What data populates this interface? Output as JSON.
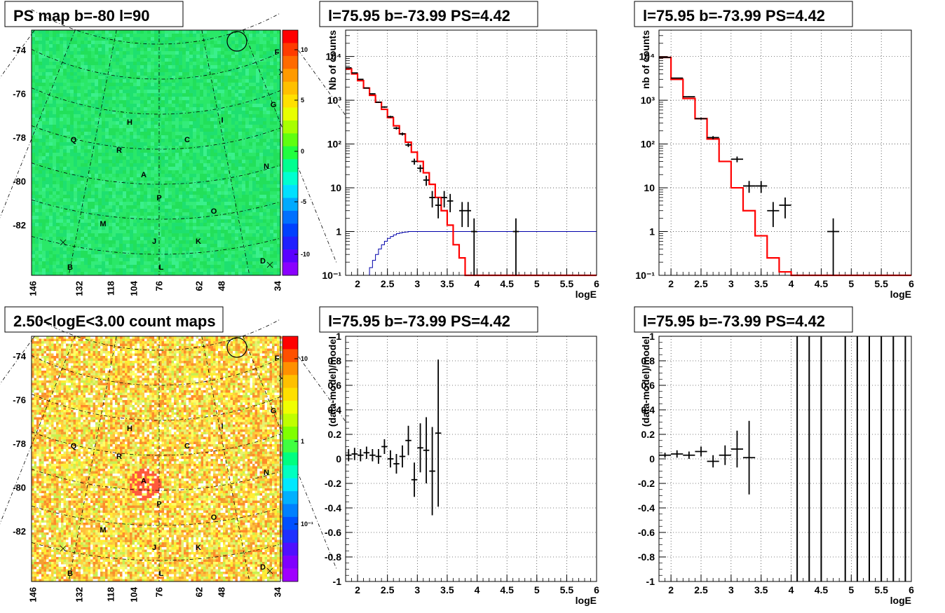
{
  "map_top": {
    "title": "PS map b=-80 l=90",
    "yticks": [
      "-74",
      "-76",
      "-78",
      "-80",
      "-82"
    ],
    "xticks": [
      "146",
      "132",
      "118",
      "104",
      "76",
      "62",
      "48",
      "34"
    ],
    "zticks": [
      "10",
      "5",
      "0",
      "-5",
      "-10"
    ],
    "labels": [
      "F",
      "G",
      "I",
      "H",
      "Q",
      "C",
      "R",
      "N",
      "A",
      "P",
      "O",
      "M",
      "J",
      "K",
      "D",
      "B",
      "L"
    ]
  },
  "map_bottom": {
    "title": "2.50<logE<3.00 count maps",
    "yticks": [
      "-74",
      "-76",
      "-78",
      "-80",
      "-82"
    ],
    "xticks": [
      "146",
      "132",
      "118",
      "104",
      "76",
      "62",
      "48",
      "34"
    ],
    "zticks": [
      "10",
      "1",
      "10⁻¹"
    ],
    "labels": [
      "F",
      "G",
      "I",
      "H",
      "Q",
      "C",
      "R",
      "N",
      "A",
      "P",
      "O",
      "M",
      "J",
      "K",
      "D",
      "B",
      "L"
    ]
  },
  "colors": {
    "data": "#000000",
    "model": "#ff0000",
    "efficiency": "#0000aa",
    "map_green": "#22e060"
  },
  "chart_data": [
    {
      "type": "line",
      "title": "l=75.95 b=-73.99 PS=4.42",
      "xlabel": "logE",
      "ylabel": "Nb of counts",
      "xlim": [
        1.8,
        6
      ],
      "ylim": [
        0.1,
        40000
      ],
      "log_y": true,
      "grid": true,
      "xticks": [
        "2",
        "2.5",
        "3",
        "3.5",
        "4",
        "4.5",
        "5",
        "5.5",
        "6"
      ],
      "yticks": [
        "10⁻¹",
        "1",
        "10",
        "10²",
        "10³",
        "10⁴"
      ],
      "data_points": [
        [
          1.85,
          5500
        ],
        [
          1.95,
          4200
        ],
        [
          2.05,
          3000
        ],
        [
          2.15,
          1900
        ],
        [
          2.25,
          1400
        ],
        [
          2.35,
          900
        ],
        [
          2.45,
          700
        ],
        [
          2.55,
          420
        ],
        [
          2.65,
          230
        ],
        [
          2.75,
          170
        ],
        [
          2.85,
          95
        ],
        [
          2.95,
          40
        ],
        [
          3.05,
          28
        ],
        [
          3.15,
          15
        ],
        [
          3.25,
          6
        ],
        [
          3.35,
          4
        ],
        [
          3.45,
          6
        ],
        [
          3.55,
          5
        ],
        [
          3.75,
          3
        ],
        [
          3.85,
          3
        ],
        [
          3.95,
          1
        ],
        [
          4.65,
          1
        ]
      ],
      "model_steps": [
        [
          1.8,
          5200
        ],
        [
          1.9,
          4000
        ],
        [
          2.0,
          2800
        ],
        [
          2.1,
          1900
        ],
        [
          2.2,
          1300
        ],
        [
          2.3,
          900
        ],
        [
          2.4,
          620
        ],
        [
          2.5,
          400
        ],
        [
          2.6,
          260
        ],
        [
          2.7,
          170
        ],
        [
          2.8,
          110
        ],
        [
          2.9,
          65
        ],
        [
          3.0,
          40
        ],
        [
          3.1,
          22
        ],
        [
          3.2,
          12
        ],
        [
          3.3,
          6
        ],
        [
          3.4,
          3
        ],
        [
          3.5,
          1.4
        ],
        [
          3.6,
          0.5
        ],
        [
          3.7,
          0.25
        ],
        [
          3.8,
          0.1
        ],
        [
          6.0,
          0.1
        ]
      ],
      "efficiency_steps": [
        [
          2.15,
          0.1
        ],
        [
          2.2,
          0.15
        ],
        [
          2.25,
          0.22
        ],
        [
          2.3,
          0.3
        ],
        [
          2.35,
          0.4
        ],
        [
          2.4,
          0.5
        ],
        [
          2.45,
          0.6
        ],
        [
          2.5,
          0.7
        ],
        [
          2.55,
          0.77
        ],
        [
          2.6,
          0.84
        ],
        [
          2.65,
          0.9
        ],
        [
          2.7,
          0.93
        ],
        [
          2.75,
          0.96
        ],
        [
          2.8,
          0.98
        ],
        [
          2.85,
          1.0
        ],
        [
          6.0,
          1.0
        ]
      ]
    },
    {
      "type": "line",
      "title": "l=75.95 b=-73.99 PS=4.42",
      "xlabel": "logE",
      "ylabel": "nb of counts",
      "xlim": [
        1.8,
        6
      ],
      "ylim": [
        0.1,
        40000
      ],
      "log_y": true,
      "grid": true,
      "xticks": [
        "2",
        "2.5",
        "3",
        "3.5",
        "4",
        "4.5",
        "5",
        "5.5",
        "6"
      ],
      "yticks": [
        "10⁻¹",
        "1",
        "10",
        "10²",
        "10³",
        "10⁴"
      ],
      "data_points": [
        [
          1.9,
          9500
        ],
        [
          2.1,
          3200
        ],
        [
          2.3,
          1200
        ],
        [
          2.5,
          380
        ],
        [
          2.7,
          140
        ],
        [
          3.1,
          45
        ],
        [
          3.3,
          11
        ],
        [
          3.5,
          11
        ],
        [
          3.7,
          3
        ],
        [
          3.9,
          4
        ],
        [
          4.7,
          1
        ]
      ],
      "model_steps": [
        [
          1.8,
          9500
        ],
        [
          2.0,
          3000
        ],
        [
          2.2,
          1100
        ],
        [
          2.4,
          380
        ],
        [
          2.6,
          130
        ],
        [
          2.8,
          40
        ],
        [
          3.0,
          10
        ],
        [
          3.2,
          3
        ],
        [
          3.4,
          0.8
        ],
        [
          3.6,
          0.25
        ],
        [
          3.8,
          0.12
        ],
        [
          4.0,
          0.1
        ],
        [
          6.0,
          0.1
        ]
      ]
    },
    {
      "type": "scatter",
      "title": "l=75.95 b=-73.99 PS=4.42",
      "xlabel": "logE",
      "ylabel": "(data-model)/model",
      "xlim": [
        1.8,
        6
      ],
      "ylim": [
        -1,
        1
      ],
      "grid": true,
      "xticks": [
        "2",
        "2.5",
        "3",
        "3.5",
        "4",
        "4.5",
        "5",
        "5.5",
        "6"
      ],
      "yticks": [
        "-1",
        "-0.8",
        "-0.6",
        "-0.4",
        "-0.2",
        "0",
        "0.2",
        "0.4",
        "0.6",
        "0.8",
        "1"
      ],
      "points": [
        [
          1.85,
          0.03,
          0.05
        ],
        [
          1.95,
          0.04,
          0.05
        ],
        [
          2.05,
          0.03,
          0.05
        ],
        [
          2.15,
          0.05,
          0.05
        ],
        [
          2.25,
          0.03,
          0.05
        ],
        [
          2.35,
          0.02,
          0.06
        ],
        [
          2.45,
          0.1,
          0.06
        ],
        [
          2.55,
          0.0,
          0.07
        ],
        [
          2.65,
          -0.04,
          0.08
        ],
        [
          2.75,
          0.02,
          0.09
        ],
        [
          2.85,
          0.15,
          0.12
        ],
        [
          2.95,
          -0.17,
          0.14
        ],
        [
          3.05,
          0.09,
          0.2
        ],
        [
          3.15,
          0.07,
          0.27
        ],
        [
          3.25,
          -0.1,
          0.36
        ],
        [
          3.35,
          0.21,
          0.6
        ]
      ]
    },
    {
      "type": "scatter",
      "title": "l=75.95 b=-73.99 PS=4.42",
      "xlabel": "logE",
      "ylabel": "(data-model)/model",
      "xlim": [
        1.8,
        6
      ],
      "ylim": [
        -1,
        1
      ],
      "grid": true,
      "xticks": [
        "2",
        "2.5",
        "3",
        "3.5",
        "4",
        "4.5",
        "5",
        "5.5",
        "6"
      ],
      "yticks": [
        "-1",
        "-0.8",
        "-0.6",
        "-0.4",
        "-0.2",
        "0",
        "0.2",
        "0.4",
        "0.6",
        "0.8",
        "1"
      ],
      "points": [
        [
          1.9,
          0.03,
          0.02
        ],
        [
          2.1,
          0.04,
          0.03
        ],
        [
          2.3,
          0.03,
          0.03
        ],
        [
          2.5,
          0.06,
          0.04
        ],
        [
          2.7,
          -0.02,
          0.05
        ],
        [
          2.9,
          0.03,
          0.08
        ],
        [
          3.1,
          0.08,
          0.15
        ],
        [
          3.3,
          0.01,
          0.3
        ]
      ],
      "full_bars": [
        4.1,
        4.3,
        4.5,
        4.9,
        5.1,
        5.3,
        5.5,
        5.7,
        5.9
      ]
    }
  ]
}
